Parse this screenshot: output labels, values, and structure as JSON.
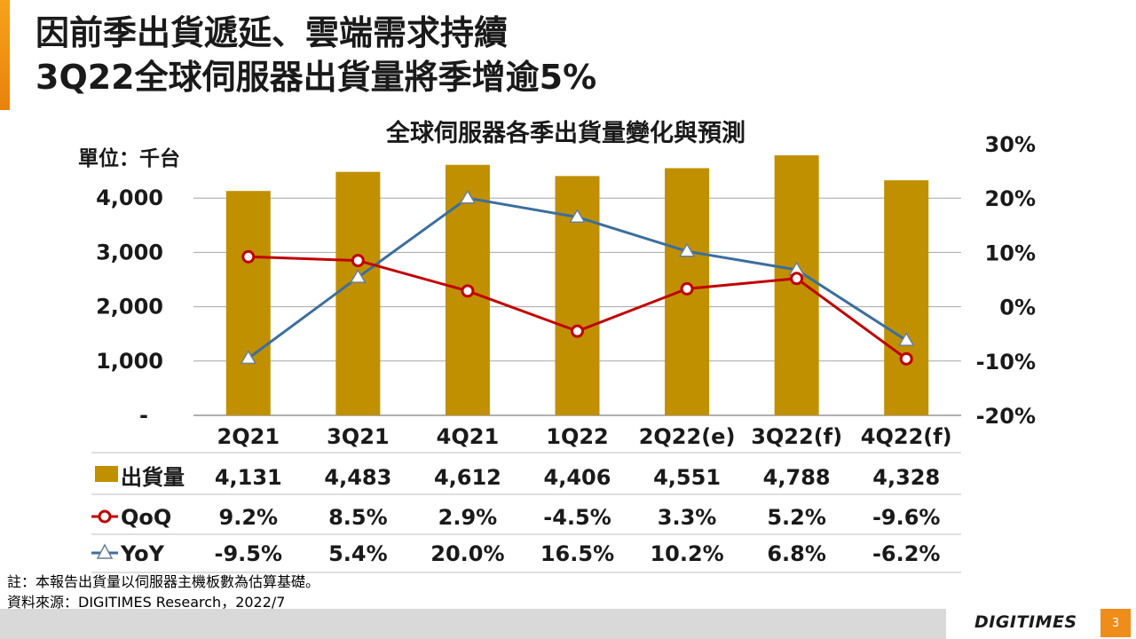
{
  "slide": {
    "title_line1": "因前季出貨遞延、雲端需求持續",
    "title_line2": "3Q22全球伺服器出貨量將季增逾5%",
    "note": "註：本報告出貨量以伺服器主機板數為估算基礎。",
    "source": "資料來源：DIGITIMES Research，2022/7",
    "brand": "DIGITIMES",
    "page_number": "3"
  },
  "colors": {
    "bar": "#C09000",
    "qoq": "#C00000",
    "yoy": "#3C6E9E",
    "grid": "#A6A6A6",
    "accent": "#F08C1A"
  },
  "chart_data": {
    "type": "bar",
    "title": "全球伺服器各季出貨量變化與預測",
    "unit_label": "單位：千台",
    "categories": [
      "2Q21",
      "3Q21",
      "4Q21",
      "1Q22",
      "2Q22(e)",
      "3Q22(f)",
      "4Q22(f)"
    ],
    "y_left": {
      "lim": [
        0,
        5000
      ],
      "ticks": [
        0,
        1000,
        2000,
        3000,
        4000
      ],
      "tick_labels": [
        "-",
        "1,000",
        "2,000",
        "3,000",
        "4,000"
      ]
    },
    "y_right": {
      "lim": [
        -20,
        30
      ],
      "ticks": [
        -20,
        -10,
        0,
        10,
        20,
        30
      ],
      "tick_labels": [
        "-20%",
        "-10%",
        "0%",
        "10%",
        "20%",
        "30%"
      ]
    },
    "grid": true,
    "series": [
      {
        "name": "出貨量",
        "type": "bar",
        "axis": "left",
        "values": [
          4131,
          4483,
          4612,
          4406,
          4551,
          4788,
          4328
        ],
        "labels": [
          "4,131",
          "4,483",
          "4,612",
          "4,406",
          "4,551",
          "4,788",
          "4,328"
        ]
      },
      {
        "name": "QoQ",
        "type": "line",
        "marker": "circle",
        "axis": "right",
        "values": [
          9.2,
          8.5,
          2.9,
          -4.5,
          3.3,
          5.2,
          -9.6
        ],
        "labels": [
          "9.2%",
          "8.5%",
          "2.9%",
          "-4.5%",
          "3.3%",
          "5.2%",
          "-9.6%"
        ]
      },
      {
        "name": "YoY",
        "type": "line",
        "marker": "triangle",
        "axis": "right",
        "values": [
          -9.5,
          5.4,
          20.0,
          16.5,
          10.2,
          6.8,
          -6.2
        ],
        "labels": [
          "-9.5%",
          "5.4%",
          "20.0%",
          "16.5%",
          "10.2%",
          "6.8%",
          "-6.2%"
        ]
      }
    ]
  }
}
